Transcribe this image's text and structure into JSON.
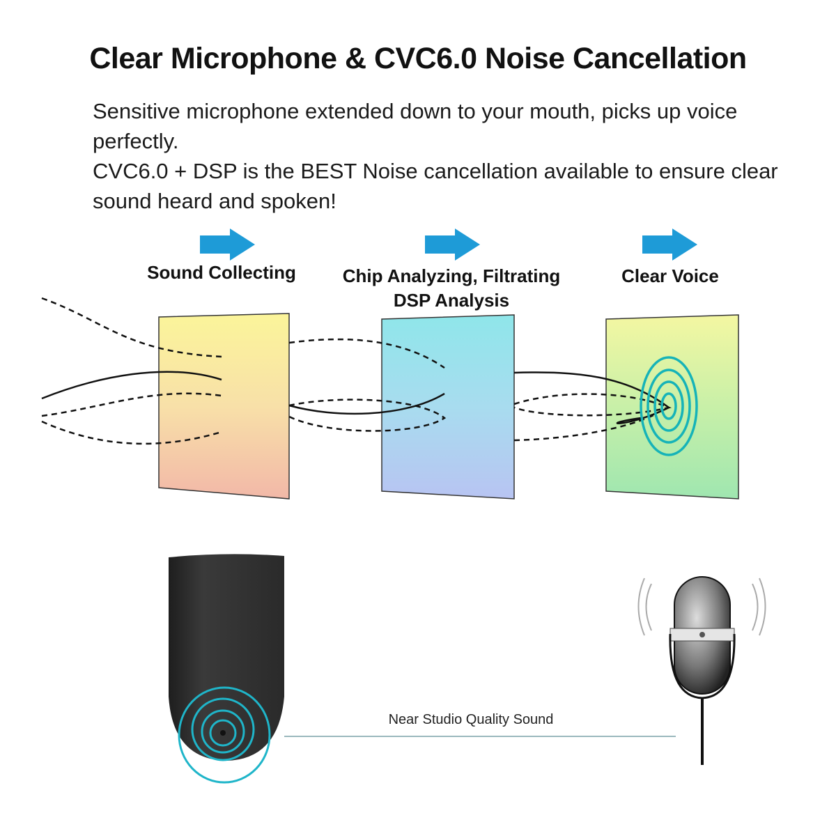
{
  "title": "Clear Microphone & CVC6.0 Noise Cancellation",
  "description": {
    "line1": "Sensitive microphone extended down to your mouth, picks up voice perfectly.",
    "line2": "CVC6.0 + DSP is the BEST Noise cancellation available to ensure clear sound heard and spoken!"
  },
  "stages": [
    {
      "label": "Sound Collecting",
      "icon": "arrow-right-icon"
    },
    {
      "label": "Chip Analyzing, Filtrating",
      "label2": "DSP Analysis",
      "icon": "arrow-right-icon"
    },
    {
      "label": "Clear Voice",
      "icon": "arrow-right-icon"
    }
  ],
  "caption": "Near Studio Quality Sound",
  "colors": {
    "arrow": "#1e9bd7",
    "ring": "#1fb5c9",
    "earpiece": "#2e2e2e"
  }
}
